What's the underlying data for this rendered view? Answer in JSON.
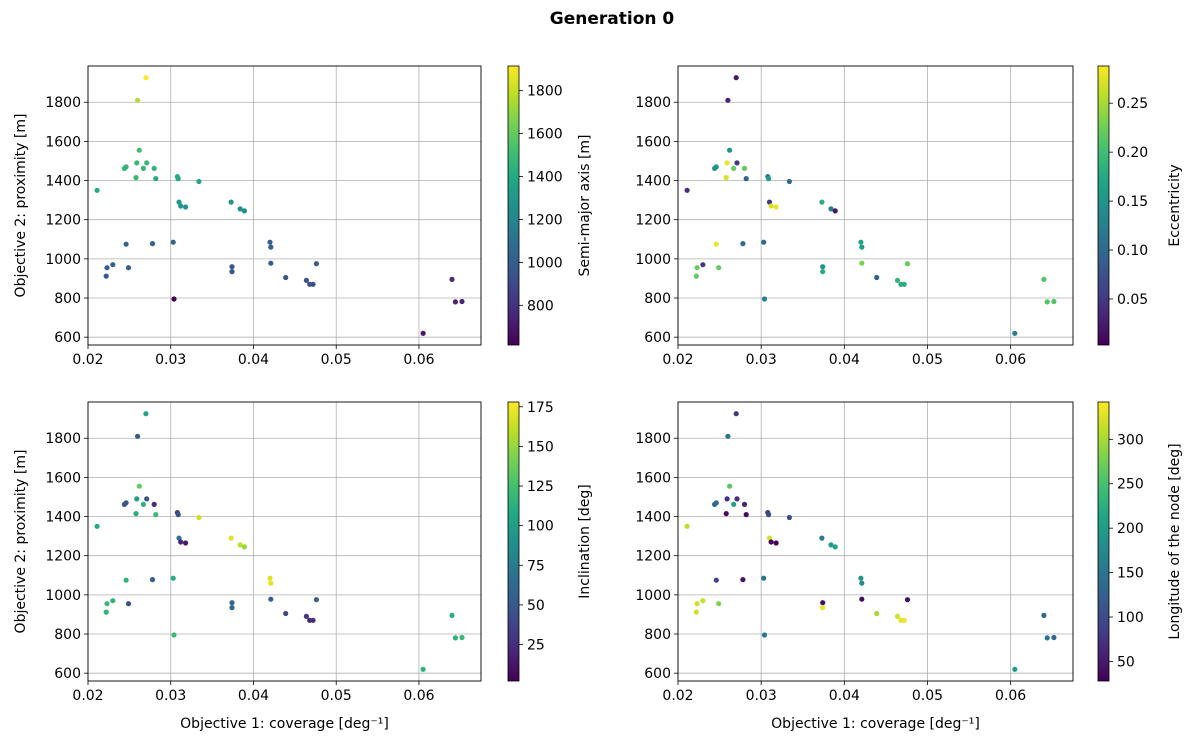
{
  "suptitle": "Generation 0",
  "chart_data": [
    {
      "type": "scatter",
      "panel": "top-left",
      "xlabel": "",
      "ylabel": "Objective 2: proximity [m]",
      "colorbar_label": "Semi-major axis [m]",
      "colorbar_ticks": [
        800,
        1000,
        1200,
        1400,
        1600,
        1800
      ],
      "colorbar_range": [
        615,
        1915
      ],
      "colormap": "viridis",
      "xlim": [
        0.02,
        0.0675
      ],
      "ylim": [
        560,
        1985
      ],
      "xticks": [
        "0.02",
        "0.03",
        "0.04",
        "0.05",
        "0.06"
      ],
      "yticks": [
        "600",
        "800",
        "1000",
        "1200",
        "1400",
        "1600",
        "1800"
      ],
      "grid": true,
      "points": [
        [
          0.0211,
          1350,
          1410
        ],
        [
          0.0222,
          912,
          980
        ],
        [
          0.0223,
          955,
          1000
        ],
        [
          0.023,
          970,
          1010
        ],
        [
          0.0244,
          1462,
          1460
        ],
        [
          0.0246,
          1470,
          1460
        ],
        [
          0.0246,
          1075,
          1030
        ],
        [
          0.0249,
          955,
          1000
        ],
        [
          0.0258,
          1415,
          1490
        ],
        [
          0.0259,
          1490,
          1480
        ],
        [
          0.026,
          1810,
          1760
        ],
        [
          0.0262,
          1555,
          1510
        ],
        [
          0.0267,
          1462,
          1470
        ],
        [
          0.027,
          1925,
          1915
        ],
        [
          0.0271,
          1490,
          1480
        ],
        [
          0.0278,
          1078,
          1030
        ],
        [
          0.028,
          1462,
          1470
        ],
        [
          0.0282,
          1410,
          1410
        ],
        [
          0.0303,
          1085,
          1020
        ],
        [
          0.0304,
          795,
          615
        ],
        [
          0.0308,
          1420,
          1410
        ],
        [
          0.0309,
          1410,
          1400
        ],
        [
          0.031,
          1290,
          1310
        ],
        [
          0.0312,
          1270,
          1280
        ],
        [
          0.0318,
          1265,
          1270
        ],
        [
          0.0334,
          1395,
          1390
        ],
        [
          0.0373,
          1290,
          1300
        ],
        [
          0.0374,
          960,
          980
        ],
        [
          0.0374,
          935,
          960
        ],
        [
          0.0384,
          1255,
          1260
        ],
        [
          0.0389,
          1245,
          1250
        ],
        [
          0.042,
          1085,
          1020
        ],
        [
          0.0421,
          1060,
          1010
        ],
        [
          0.0421,
          978,
          990
        ],
        [
          0.0439,
          905,
          950
        ],
        [
          0.0464,
          890,
          940
        ],
        [
          0.0468,
          870,
          930
        ],
        [
          0.0472,
          870,
          930
        ],
        [
          0.0476,
          975,
          990
        ],
        [
          0.0605,
          620,
          690
        ],
        [
          0.064,
          895,
          780
        ],
        [
          0.0644,
          780,
          750
        ],
        [
          0.0652,
          782,
          760
        ]
      ]
    },
    {
      "type": "scatter",
      "panel": "top-right",
      "xlabel": "",
      "ylabel": "",
      "colorbar_label": "Eccentricity",
      "colorbar_ticks": [
        0.05,
        0.1,
        0.15,
        0.2,
        0.25
      ],
      "colorbar_tick_labels": [
        "0.05",
        "0.10",
        "0.15",
        "0.20",
        "0.25"
      ],
      "colorbar_range": [
        0.003,
        0.288
      ],
      "colormap": "viridis",
      "xlim": [
        0.02,
        0.0675
      ],
      "ylim": [
        560,
        1985
      ],
      "xticks": [
        "0.02",
        "0.03",
        "0.04",
        "0.05",
        "0.06"
      ],
      "yticks": [
        "600",
        "800",
        "1000",
        "1200",
        "1400",
        "1600",
        "1800"
      ],
      "grid": true,
      "points": [
        [
          0.0211,
          1350,
          0.04
        ],
        [
          0.0222,
          912,
          0.22
        ],
        [
          0.0223,
          955,
          0.22
        ],
        [
          0.023,
          970,
          0.05
        ],
        [
          0.0244,
          1462,
          0.15
        ],
        [
          0.0246,
          1470,
          0.15
        ],
        [
          0.0246,
          1075,
          0.28
        ],
        [
          0.0249,
          955,
          0.22
        ],
        [
          0.0258,
          1415,
          0.27
        ],
        [
          0.0259,
          1490,
          0.28
        ],
        [
          0.026,
          1810,
          0.03
        ],
        [
          0.0262,
          1555,
          0.15
        ],
        [
          0.0267,
          1462,
          0.22
        ],
        [
          0.027,
          1925,
          0.02
        ],
        [
          0.0271,
          1490,
          0.05
        ],
        [
          0.0278,
          1078,
          0.1
        ],
        [
          0.028,
          1462,
          0.22
        ],
        [
          0.0282,
          1410,
          0.09
        ],
        [
          0.0303,
          1085,
          0.1
        ],
        [
          0.0304,
          795,
          0.13
        ],
        [
          0.0308,
          1420,
          0.12
        ],
        [
          0.0309,
          1410,
          0.16
        ],
        [
          0.031,
          1290,
          0.05
        ],
        [
          0.0312,
          1270,
          0.27
        ],
        [
          0.0318,
          1265,
          0.28
        ],
        [
          0.0334,
          1395,
          0.1
        ],
        [
          0.0373,
          1290,
          0.18
        ],
        [
          0.0374,
          960,
          0.15
        ],
        [
          0.0374,
          935,
          0.18
        ],
        [
          0.0384,
          1255,
          0.12
        ],
        [
          0.0389,
          1245,
          0.02
        ],
        [
          0.042,
          1085,
          0.17
        ],
        [
          0.0421,
          1060,
          0.16
        ],
        [
          0.0421,
          978,
          0.23
        ],
        [
          0.0439,
          905,
          0.09
        ],
        [
          0.0464,
          890,
          0.19
        ],
        [
          0.0468,
          870,
          0.18
        ],
        [
          0.0472,
          870,
          0.18
        ],
        [
          0.0476,
          975,
          0.22
        ],
        [
          0.0605,
          620,
          0.12
        ],
        [
          0.064,
          895,
          0.21
        ],
        [
          0.0644,
          780,
          0.21
        ],
        [
          0.0652,
          782,
          0.21
        ]
      ]
    },
    {
      "type": "scatter",
      "panel": "bottom-left",
      "xlabel": "Objective 1: coverage [deg⁻¹]",
      "ylabel": "Objective 2: proximity [m]",
      "colorbar_label": "Inclination [deg]",
      "colorbar_ticks": [
        25,
        50,
        75,
        100,
        125,
        150,
        175
      ],
      "colorbar_range": [
        2,
        178
      ],
      "colormap": "viridis",
      "xlim": [
        0.02,
        0.0675
      ],
      "ylim": [
        560,
        1985
      ],
      "xticks": [
        "0.02",
        "0.03",
        "0.04",
        "0.05",
        "0.06"
      ],
      "yticks": [
        "600",
        "800",
        "1000",
        "1200",
        "1400",
        "1600",
        "1800"
      ],
      "grid": true,
      "points": [
        [
          0.0211,
          1350,
          110
        ],
        [
          0.0222,
          912,
          115
        ],
        [
          0.0223,
          955,
          120
        ],
        [
          0.023,
          970,
          115
        ],
        [
          0.0244,
          1462,
          45
        ],
        [
          0.0246,
          1470,
          50
        ],
        [
          0.0246,
          1075,
          115
        ],
        [
          0.0249,
          955,
          45
        ],
        [
          0.0258,
          1415,
          110
        ],
        [
          0.0259,
          1490,
          100
        ],
        [
          0.026,
          1810,
          50
        ],
        [
          0.0262,
          1555,
          135
        ],
        [
          0.0267,
          1462,
          115
        ],
        [
          0.027,
          1925,
          105
        ],
        [
          0.0271,
          1490,
          50
        ],
        [
          0.0278,
          1078,
          55
        ],
        [
          0.028,
          1462,
          25
        ],
        [
          0.0282,
          1410,
          120
        ],
        [
          0.0303,
          1085,
          110
        ],
        [
          0.0304,
          795,
          120
        ],
        [
          0.0308,
          1420,
          35
        ],
        [
          0.0309,
          1410,
          45
        ],
        [
          0.031,
          1290,
          70
        ],
        [
          0.0312,
          1270,
          20
        ],
        [
          0.0318,
          1265,
          15
        ],
        [
          0.0334,
          1395,
          165
        ],
        [
          0.0373,
          1290,
          170
        ],
        [
          0.0374,
          960,
          60
        ],
        [
          0.0374,
          935,
          60
        ],
        [
          0.0384,
          1255,
          160
        ],
        [
          0.0389,
          1245,
          150
        ],
        [
          0.042,
          1085,
          170
        ],
        [
          0.0421,
          1060,
          172
        ],
        [
          0.0421,
          978,
          55
        ],
        [
          0.0439,
          905,
          40
        ],
        [
          0.0464,
          890,
          30
        ],
        [
          0.0468,
          870,
          20
        ],
        [
          0.0472,
          870,
          25
        ],
        [
          0.0476,
          975,
          55
        ],
        [
          0.0605,
          620,
          115
        ],
        [
          0.064,
          895,
          110
        ],
        [
          0.0644,
          780,
          115
        ],
        [
          0.0652,
          782,
          120
        ]
      ]
    },
    {
      "type": "scatter",
      "panel": "bottom-right",
      "xlabel": "Objective 1: coverage [deg⁻¹]",
      "ylabel": "",
      "colorbar_label": "Longitude of the node [deg]",
      "colorbar_ticks": [
        50,
        100,
        150,
        200,
        250,
        300
      ],
      "colorbar_range": [
        28,
        342
      ],
      "colormap": "viridis",
      "xlim": [
        0.02,
        0.0675
      ],
      "ylim": [
        560,
        1985
      ],
      "xticks": [
        "0.02",
        "0.03",
        "0.04",
        "0.05",
        "0.06"
      ],
      "yticks": [
        "600",
        "800",
        "1000",
        "1200",
        "1400",
        "1600",
        "1800"
      ],
      "grid": true,
      "points": [
        [
          0.0211,
          1350,
          310
        ],
        [
          0.0222,
          912,
          320
        ],
        [
          0.0223,
          955,
          320
        ],
        [
          0.023,
          970,
          315
        ],
        [
          0.0244,
          1462,
          130
        ],
        [
          0.0246,
          1470,
          140
        ],
        [
          0.0246,
          1075,
          90
        ],
        [
          0.0249,
          955,
          280
        ],
        [
          0.0258,
          1415,
          40
        ],
        [
          0.0259,
          1490,
          70
        ],
        [
          0.026,
          1810,
          150
        ],
        [
          0.0262,
          1555,
          260
        ],
        [
          0.0267,
          1462,
          210
        ],
        [
          0.027,
          1925,
          75
        ],
        [
          0.0271,
          1490,
          70
        ],
        [
          0.0278,
          1078,
          45
        ],
        [
          0.028,
          1462,
          60
        ],
        [
          0.0282,
          1410,
          40
        ],
        [
          0.0303,
          1085,
          150
        ],
        [
          0.0304,
          795,
          160
        ],
        [
          0.0308,
          1420,
          80
        ],
        [
          0.0309,
          1410,
          100
        ],
        [
          0.031,
          1290,
          320
        ],
        [
          0.0312,
          1270,
          35
        ],
        [
          0.0318,
          1265,
          30
        ],
        [
          0.0334,
          1395,
          100
        ],
        [
          0.0373,
          1290,
          160
        ],
        [
          0.0374,
          960,
          40
        ],
        [
          0.0374,
          935,
          330
        ],
        [
          0.0384,
          1255,
          200
        ],
        [
          0.0389,
          1245,
          210
        ],
        [
          0.042,
          1085,
          190
        ],
        [
          0.0421,
          1060,
          180
        ],
        [
          0.0421,
          978,
          40
        ],
        [
          0.0439,
          905,
          300
        ],
        [
          0.0464,
          890,
          320
        ],
        [
          0.0468,
          870,
          330
        ],
        [
          0.0472,
          870,
          335
        ],
        [
          0.0476,
          975,
          40
        ],
        [
          0.0605,
          620,
          200
        ],
        [
          0.064,
          895,
          130
        ],
        [
          0.0644,
          780,
          150
        ],
        [
          0.0652,
          782,
          130
        ]
      ]
    }
  ]
}
